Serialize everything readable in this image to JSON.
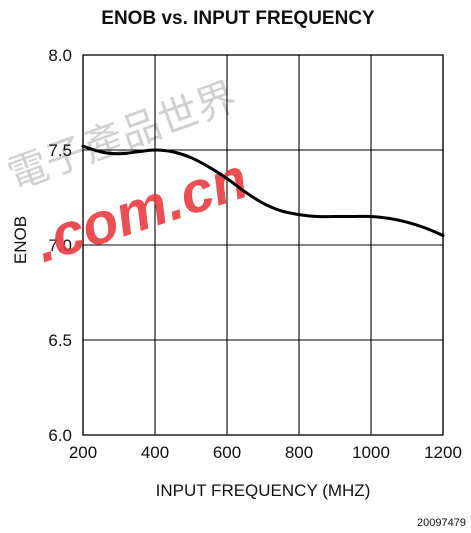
{
  "chart_data": {
    "type": "line",
    "title": "ENOB vs. INPUT FREQUENCY",
    "xlabel": "INPUT FREQUENCY (MHZ)",
    "ylabel": "ENOB",
    "xlim": [
      200,
      1200
    ],
    "ylim": [
      6.0,
      8.0
    ],
    "x_ticks": [
      200,
      400,
      600,
      800,
      1000,
      1200
    ],
    "x_tick_labels": [
      "200",
      "400",
      "600",
      "800",
      "1000",
      "1200"
    ],
    "y_ticks": [
      6.0,
      6.5,
      7.0,
      7.5,
      8.0
    ],
    "y_tick_labels": [
      "6.0",
      "6.5",
      "7.0",
      "7.5",
      "8.0"
    ],
    "grid": true,
    "series": [
      {
        "color": "#000000",
        "x": [
          200,
          250,
          300,
          350,
          400,
          450,
          500,
          550,
          600,
          650,
          700,
          750,
          800,
          850,
          900,
          950,
          1000,
          1050,
          1100,
          1150,
          1200
        ],
        "y": [
          7.52,
          7.49,
          7.48,
          7.49,
          7.5,
          7.49,
          7.46,
          7.41,
          7.35,
          7.28,
          7.22,
          7.18,
          7.16,
          7.15,
          7.15,
          7.15,
          7.15,
          7.14,
          7.12,
          7.09,
          7.05
        ]
      }
    ]
  },
  "figure_id": "20097479",
  "watermark": {
    "text": ".com.cn",
    "cjk": "電子產品世界",
    "color": "#e8373d"
  }
}
